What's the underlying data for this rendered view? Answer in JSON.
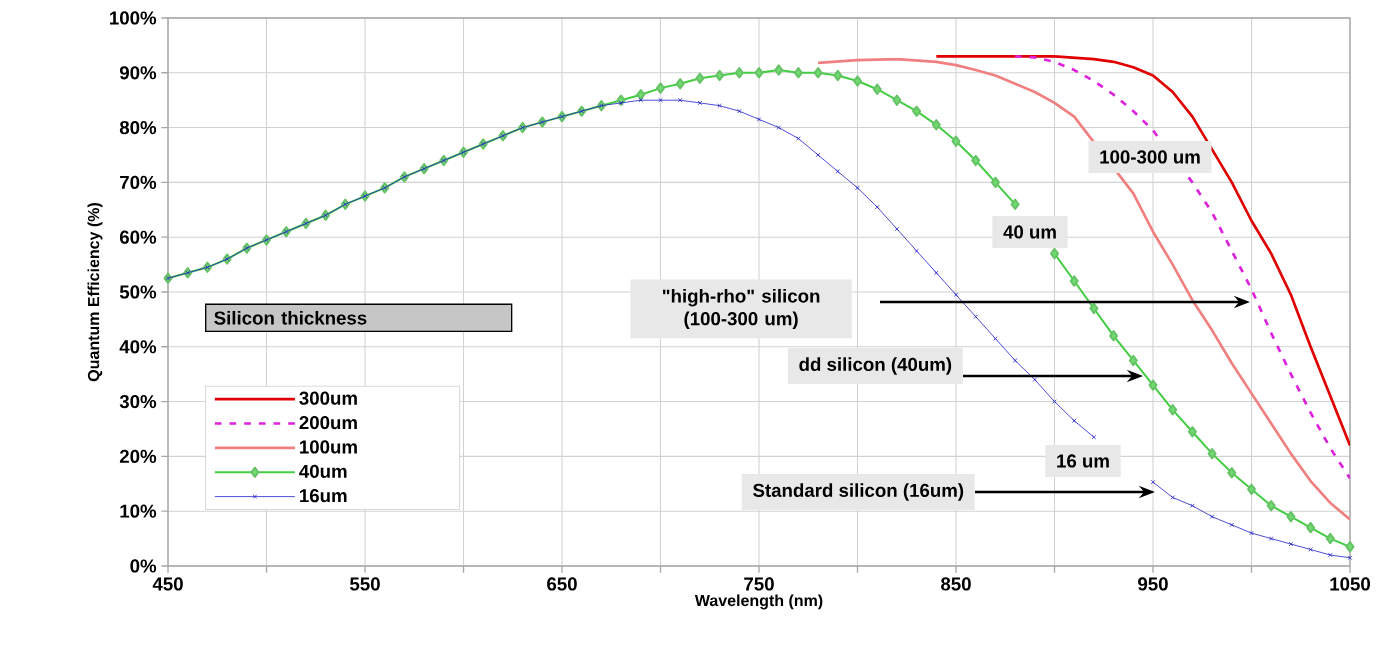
{
  "chart_data": {
    "type": "line",
    "xlabel": "Wavelength (nm)",
    "ylabel": "Quantum Efficiency (%)",
    "xlim": [
      450,
      1050
    ],
    "ylim": [
      0,
      100
    ],
    "xticks": [
      450,
      {
        "value": 500,
        "label": null
      },
      550,
      {
        "value": 600,
        "label": null
      },
      650,
      {
        "value": 700,
        "label": null
      },
      750,
      {
        "value": 800,
        "label": null
      },
      850,
      {
        "value": 900,
        "label": null
      },
      950,
      {
        "value": 1000,
        "label": null
      },
      1050
    ],
    "yticks": [
      {
        "value": 0,
        "label": "0%"
      },
      {
        "value": 10,
        "label": "10%"
      },
      {
        "value": 20,
        "label": "20%"
      },
      {
        "value": 30,
        "label": "30%"
      },
      {
        "value": 40,
        "label": "40%"
      },
      {
        "value": 50,
        "label": "50%"
      },
      {
        "value": 60,
        "label": "60%"
      },
      {
        "value": 70,
        "label": "70%"
      },
      {
        "value": 80,
        "label": "80%"
      },
      {
        "value": 90,
        "label": "90%"
      },
      {
        "value": 100,
        "label": "100%"
      }
    ],
    "grid": true,
    "legend": "bottom left",
    "legend_title": "Silicon thickness",
    "series": [
      {
        "name": "300um",
        "color": "#e00000",
        "line_style": "solid",
        "marker": "none",
        "x": [
          840,
          860,
          880,
          900,
          920,
          930,
          940,
          950,
          960,
          970,
          990,
          1000,
          1010,
          1020,
          1030,
          1040,
          1050
        ],
        "values": [
          93,
          93,
          93,
          93,
          92.5,
          92,
          91,
          89.5,
          86.5,
          82,
          70,
          63,
          57,
          49.5,
          40,
          31,
          22
        ]
      },
      {
        "name": "200um",
        "color": "#dd22dd",
        "line_style": "dashed",
        "marker": "none",
        "x": [
          880,
          890,
          900,
          910,
          920,
          930,
          940,
          950,
          970,
          980,
          990,
          1000,
          1010,
          1020,
          1030,
          1040,
          1050
        ],
        "values": [
          93,
          92.8,
          92,
          90.5,
          88.5,
          86,
          83,
          79.5,
          70,
          64.5,
          57.5,
          50.5,
          42.5,
          35,
          28,
          21.5,
          16
        ]
      },
      {
        "name": "100um",
        "color": "#f08080",
        "line_style": "solid",
        "marker": "none",
        "x": [
          780,
          800,
          820,
          840,
          850,
          860,
          870,
          880,
          890,
          900,
          910,
          940,
          950,
          960,
          970,
          980,
          990,
          1000,
          1010,
          1020,
          1030,
          1040,
          1050
        ],
        "values": [
          91.8,
          92.3,
          92.5,
          92,
          91.4,
          90.5,
          89.5,
          88,
          86.5,
          84.5,
          82,
          68,
          61,
          55,
          48.5,
          43,
          37,
          31.5,
          26,
          20.5,
          15.5,
          11.5,
          8.5
        ]
      },
      {
        "name": "40um",
        "color": "#44cc44",
        "line_style": "solid",
        "marker": "diamond",
        "x": [
          450,
          460,
          470,
          480,
          490,
          500,
          510,
          520,
          530,
          540,
          550,
          560,
          570,
          580,
          590,
          600,
          610,
          620,
          630,
          640,
          650,
          660,
          670,
          680,
          690,
          700,
          710,
          720,
          730,
          740,
          750,
          760,
          770,
          780,
          790,
          800,
          810,
          820,
          830,
          840,
          850,
          860,
          870,
          880,
          890,
          900,
          910,
          920,
          930,
          940,
          950,
          960,
          970,
          980,
          990,
          1000,
          1010,
          1020,
          1030,
          1040,
          1050
        ],
        "values": [
          52.5,
          53.5,
          54.5,
          56,
          58,
          59.5,
          61,
          62.5,
          64,
          66,
          67.5,
          69,
          71,
          72.5,
          74,
          75.5,
          77,
          78.5,
          80,
          81,
          82,
          83,
          84,
          85,
          86,
          87.2,
          88,
          89,
          89.5,
          90,
          90,
          90.5,
          90,
          90,
          89.5,
          88.5,
          87,
          85,
          83,
          80.5,
          77.5,
          74,
          70,
          66,
          null,
          57,
          52,
          47,
          42,
          37.5,
          33,
          28.5,
          24.5,
          20.5,
          17,
          14,
          11,
          9,
          7,
          5,
          3.5
        ]
      },
      {
        "name": "16um",
        "color": "#2222cc",
        "line_style": "solid",
        "marker": "cross",
        "x": [
          450,
          460,
          470,
          480,
          490,
          500,
          510,
          520,
          530,
          540,
          550,
          560,
          570,
          580,
          590,
          600,
          610,
          620,
          630,
          640,
          650,
          660,
          670,
          680,
          690,
          700,
          710,
          720,
          730,
          740,
          750,
          760,
          770,
          780,
          790,
          800,
          810,
          820,
          830,
          840,
          850,
          860,
          870,
          880,
          890,
          900,
          910,
          920,
          930,
          940,
          950,
          960,
          970,
          980,
          990,
          1000,
          1010,
          1020,
          1030,
          1040,
          1050
        ],
        "values": [
          52.5,
          53.5,
          54.5,
          56,
          58,
          59.5,
          61,
          62.5,
          64,
          66,
          67.5,
          69,
          71,
          72.5,
          74,
          75.5,
          77,
          78.5,
          80,
          81,
          82,
          83,
          84,
          84.5,
          85,
          85,
          85,
          84.5,
          84,
          83,
          81.5,
          80,
          78,
          75,
          72,
          69,
          65.5,
          61.5,
          57.5,
          53.5,
          49.5,
          45.5,
          41.5,
          37.5,
          34,
          30,
          26.5,
          23.5,
          null,
          null,
          15.3,
          12.5,
          11,
          9,
          7.5,
          6,
          5,
          4,
          3,
          2,
          1.5
        ]
      }
    ],
    "annotations": [
      "100-300 um",
      "40 um",
      "\"high-rho\" silicon (100-300 um)",
      "dd silicon (40um)",
      "16 um",
      "Standard silicon (16um)"
    ]
  }
}
